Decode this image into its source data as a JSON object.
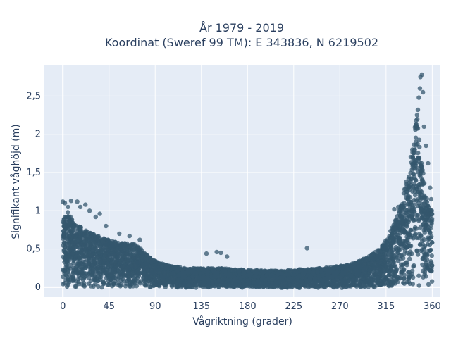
{
  "chart_data": {
    "type": "scatter",
    "title_line1": "År 1979 - 2019",
    "title_line2": "Koordinat (Sweref 99 TM): E 343836, N 6219502",
    "xlabel": "Vågriktning (grader)",
    "ylabel": "Signifikant våghöjd (m)",
    "xlim": [
      -18,
      368
    ],
    "ylim": [
      -0.13,
      2.9
    ],
    "xticks": [
      0,
      45,
      90,
      135,
      180,
      225,
      270,
      315,
      360
    ],
    "xtick_labels": [
      "0",
      "45",
      "90",
      "135",
      "180",
      "225",
      "270",
      "315",
      "360"
    ],
    "yticks": [
      0,
      0.5,
      1,
      1.5,
      2,
      2.5
    ],
    "ytick_labels": [
      "0",
      "0,5",
      "1",
      "1,5",
      "2",
      "2,5"
    ],
    "grid": true,
    "marker_color": "#34576e",
    "plot_bg": "#e5ecf6",
    "envelope": {
      "x": [
        0,
        5,
        10,
        20,
        30,
        40,
        50,
        60,
        70,
        80,
        90,
        100,
        110,
        120,
        135,
        150,
        165,
        180,
        200,
        225,
        250,
        270,
        285,
        300,
        310,
        320,
        330,
        335,
        340,
        345,
        350,
        355,
        360
      ],
      "ymax": [
        0.9,
        1.0,
        0.85,
        0.78,
        0.7,
        0.65,
        0.6,
        0.58,
        0.58,
        0.45,
        0.35,
        0.3,
        0.27,
        0.25,
        0.25,
        0.25,
        0.24,
        0.23,
        0.22,
        0.23,
        0.25,
        0.28,
        0.32,
        0.42,
        0.52,
        0.75,
        1.1,
        1.4,
        1.8,
        2.3,
        1.6,
        1.2,
        1.0
      ]
    },
    "outliers": [
      {
        "x": 0,
        "y": 1.12
      },
      {
        "x": 2,
        "y": 1.1
      },
      {
        "x": 5,
        "y": 1.05
      },
      {
        "x": 8,
        "y": 1.13
      },
      {
        "x": 14,
        "y": 1.12
      },
      {
        "x": 17,
        "y": 1.05
      },
      {
        "x": 22,
        "y": 1.08
      },
      {
        "x": 26,
        "y": 1.0
      },
      {
        "x": 32,
        "y": 0.92
      },
      {
        "x": 36,
        "y": 0.96
      },
      {
        "x": 42,
        "y": 0.8
      },
      {
        "x": 55,
        "y": 0.7
      },
      {
        "x": 65,
        "y": 0.67
      },
      {
        "x": 75,
        "y": 0.62
      },
      {
        "x": 140,
        "y": 0.44
      },
      {
        "x": 150,
        "y": 0.46
      },
      {
        "x": 154,
        "y": 0.45
      },
      {
        "x": 160,
        "y": 0.4
      },
      {
        "x": 238,
        "y": 0.51
      },
      {
        "x": 323,
        "y": 1.02
      },
      {
        "x": 327,
        "y": 1.05
      },
      {
        "x": 333,
        "y": 1.28
      },
      {
        "x": 337,
        "y": 1.42
      },
      {
        "x": 341,
        "y": 1.58
      },
      {
        "x": 343,
        "y": 1.8
      },
      {
        "x": 345,
        "y": 2.1
      },
      {
        "x": 346,
        "y": 2.32
      },
      {
        "x": 347,
        "y": 2.48
      },
      {
        "x": 348,
        "y": 2.6
      },
      {
        "x": 348.5,
        "y": 2.75
      },
      {
        "x": 350,
        "y": 2.78
      },
      {
        "x": 351,
        "y": 2.55
      },
      {
        "x": 352,
        "y": 2.1
      },
      {
        "x": 354,
        "y": 1.85
      },
      {
        "x": 356,
        "y": 1.62
      },
      {
        "x": 358,
        "y": 1.3
      },
      {
        "x": 359,
        "y": 1.15
      }
    ]
  }
}
